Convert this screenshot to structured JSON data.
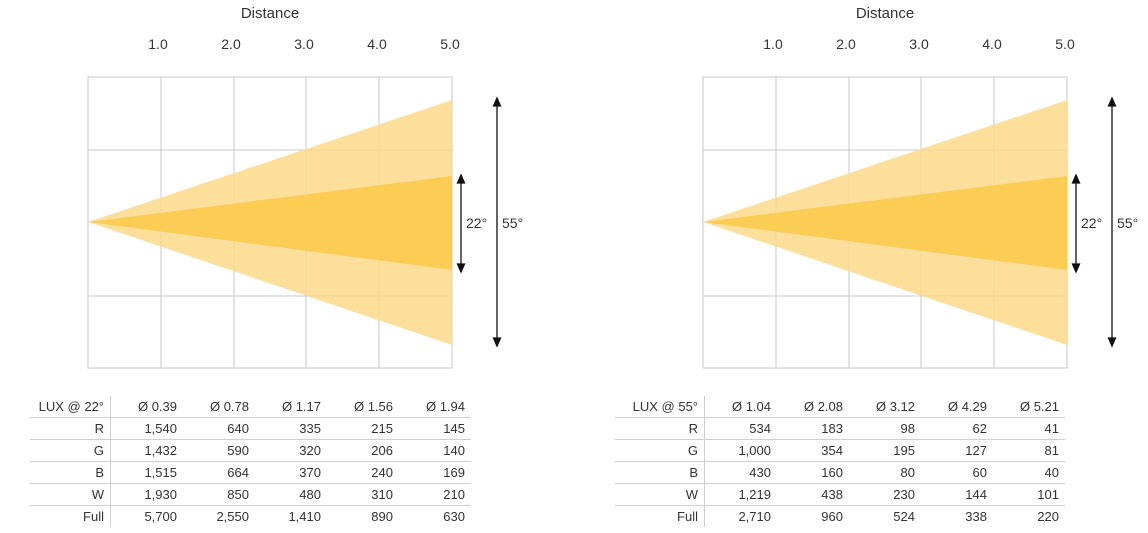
{
  "panels": [
    {
      "distance_label": "Distance",
      "ticks": [
        "1.0",
        "2.0",
        "3.0",
        "4.0",
        "5.0"
      ],
      "narrow_angle": "22°",
      "wide_angle": "55°",
      "colors": {
        "wide": "#fbd98a",
        "narrow": "#fccf5c",
        "grid": "#c8c8c8"
      },
      "table": {
        "header": [
          "LUX @ 22°",
          "Ø 0.39",
          "Ø 0.78",
          "Ø 1.17",
          "Ø 1.56",
          "Ø 1.94"
        ],
        "rows": [
          {
            "label": "R",
            "values": [
              "1,540",
              "640",
              "335",
              "215",
              "145"
            ]
          },
          {
            "label": "G",
            "values": [
              "1,432",
              "590",
              "320",
              "206",
              "140"
            ]
          },
          {
            "label": "B",
            "values": [
              "1,515",
              "664",
              "370",
              "240",
              "169"
            ]
          },
          {
            "label": "W",
            "values": [
              "1,930",
              "850",
              "480",
              "310",
              "210"
            ]
          },
          {
            "label": "Full",
            "values": [
              "5,700",
              "2,550",
              "1,410",
              "890",
              "630"
            ]
          }
        ]
      }
    },
    {
      "distance_label": "Distance",
      "ticks": [
        "1.0",
        "2.0",
        "3.0",
        "4.0",
        "5.0"
      ],
      "narrow_angle": "22°",
      "wide_angle": "55°",
      "colors": {
        "wide": "#fbd98a",
        "narrow": "#fccf5c",
        "grid": "#c8c8c8"
      },
      "table": {
        "header": [
          "LUX @ 55°",
          "Ø 1.04",
          "Ø 2.08",
          "Ø 3.12",
          "Ø 4.29",
          "Ø 5.21"
        ],
        "rows": [
          {
            "label": "R",
            "values": [
              "534",
              "183",
              "98",
              "62",
              "41"
            ]
          },
          {
            "label": "G",
            "values": [
              "1,000",
              "354",
              "195",
              "127",
              "81"
            ]
          },
          {
            "label": "B",
            "values": [
              "430",
              "160",
              "80",
              "60",
              "40"
            ]
          },
          {
            "label": "W",
            "values": [
              "1,219",
              "438",
              "230",
              "144",
              "101"
            ]
          },
          {
            "label": "Full",
            "values": [
              "2,710",
              "960",
              "524",
              "338",
              "220"
            ]
          }
        ]
      }
    }
  ]
}
